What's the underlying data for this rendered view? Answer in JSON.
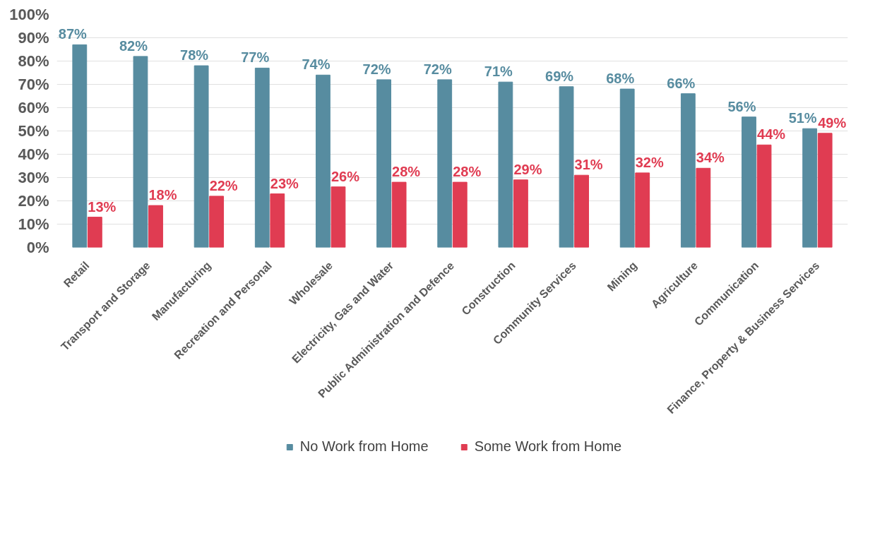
{
  "chart_data": {
    "type": "bar",
    "categories": [
      "Retail",
      "Transport and Storage",
      "Manufacturing",
      "Recreation and Personal",
      "Wholesale",
      "Electricity, Gas and Water",
      "Public Administration and Defence",
      "Construction",
      "Community Services",
      "Mining",
      "Agriculture",
      "Communication",
      "Finance, Property & Business Services"
    ],
    "series": [
      {
        "name": "No Work from Home",
        "color": "#578ca0",
        "values": [
          87,
          82,
          78,
          77,
          74,
          72,
          72,
          71,
          69,
          68,
          66,
          56,
          51
        ],
        "value_labels": [
          "87%",
          "82%",
          "78%",
          "77%",
          "74%",
          "72%",
          "72%",
          "71%",
          "69%",
          "68%",
          "66%",
          "56%",
          "51%"
        ]
      },
      {
        "name": "Some Work from Home",
        "color": "#e03c52",
        "values": [
          13,
          18,
          22,
          23,
          26,
          28,
          28,
          29,
          31,
          32,
          34,
          44,
          49
        ],
        "value_labels": [
          "13%",
          "18%",
          "22%",
          "23%",
          "26%",
          "28%",
          "28%",
          "29%",
          "31%",
          "32%",
          "34%",
          "44%",
          "49%"
        ]
      }
    ],
    "ylim": [
      0,
      100
    ],
    "yticks": [
      {
        "value": 0,
        "label": "0%"
      },
      {
        "value": 10,
        "label": "10%"
      },
      {
        "value": 20,
        "label": "20%"
      },
      {
        "value": 30,
        "label": "30%"
      },
      {
        "value": 40,
        "label": "40%"
      },
      {
        "value": 50,
        "label": "50%"
      },
      {
        "value": 60,
        "label": "60%"
      },
      {
        "value": 70,
        "label": "70%"
      },
      {
        "value": 80,
        "label": "80%"
      },
      {
        "value": 90,
        "label": "90%"
      },
      {
        "value": 100,
        "label": "100%"
      }
    ],
    "grid": "y",
    "legend": "bottom"
  }
}
